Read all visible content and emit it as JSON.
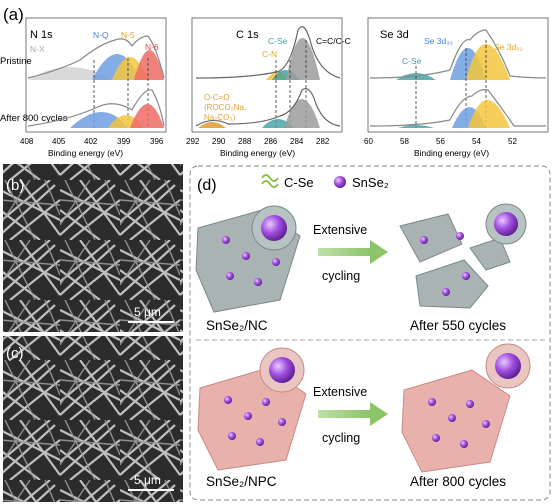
{
  "panels": {
    "a_label": "(a)",
    "b_label": "(b)",
    "c_label": "(c)",
    "d_label": "(d)"
  },
  "xps": {
    "row_labels": {
      "pristine": "Pristine",
      "cycled": "After 800 cycles"
    },
    "x_axis_label": "Binding energy (eV)",
    "n1s": {
      "title": "N 1s",
      "peaks": {
        "nx": "N-X",
        "nq": "N-Q",
        "n5": "N-5",
        "n6": "N-6"
      },
      "ticks": [
        "408",
        "405",
        "402",
        "399",
        "396"
      ]
    },
    "c1s": {
      "title": "C 1s",
      "peaks": {
        "cse": "C-Se",
        "cn": "C-N",
        "cc": "C=C/C-C"
      },
      "annotation": [
        "O-C=O",
        "(ROCO₂Na,",
        "Na₂CO₃)"
      ],
      "ticks": [
        "292",
        "290",
        "288",
        "286",
        "284",
        "282"
      ]
    },
    "se3d": {
      "title": "Se 3d",
      "peaks": {
        "cse": "C-Se",
        "se3d32": "Se 3d₃₂",
        "se3d52": "Se 3d₅₂"
      },
      "ticks": [
        "60",
        "58",
        "56",
        "54",
        "52"
      ]
    },
    "colors": {
      "blue": "#6f9fe0",
      "yellow": "#f3c540",
      "red": "#ee6b66",
      "gray": "#9c9c9c",
      "teal": "#3f9fa3",
      "orange": "#e2a13a"
    }
  },
  "sem": {
    "scale_b": "5 μm",
    "scale_c": "5 μm"
  },
  "schematic": {
    "legend": {
      "cse": "C-Se",
      "snse2": "SnSe₂"
    },
    "arrow_label_1": "Extensive",
    "arrow_label_2": "cycling",
    "nc": {
      "before": "SnSe₂/NC",
      "after": "After 550 cycles"
    },
    "npc": {
      "before": "SnSe₂/NPC",
      "after": "After 800 cycles"
    }
  }
}
